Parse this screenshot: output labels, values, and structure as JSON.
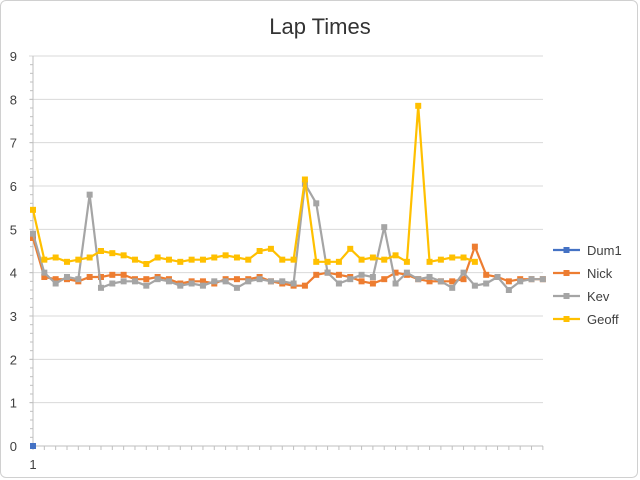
{
  "chart_data": {
    "type": "line",
    "title": "Lap Times",
    "xlabel": "",
    "ylabel": "",
    "ylim": [
      0,
      9
    ],
    "yticks": [
      "0",
      "1",
      "2",
      "3",
      "4",
      "5",
      "6",
      "7",
      "8",
      "9"
    ],
    "xtick_labels": [
      "1"
    ],
    "grid": true,
    "legend_position": "right",
    "series": [
      {
        "name": "Dum1",
        "color": "#4472c4",
        "values": [
          0
        ]
      },
      {
        "name": "Nick",
        "color": "#ed7d31",
        "values": [
          4.8,
          3.9,
          3.85,
          3.85,
          3.8,
          3.9,
          3.9,
          3.95,
          3.95,
          3.85,
          3.85,
          3.9,
          3.85,
          3.75,
          3.8,
          3.8,
          3.75,
          3.85,
          3.85,
          3.85,
          3.9,
          3.8,
          3.75,
          3.7,
          3.7,
          3.95,
          4.0,
          3.95,
          3.9,
          3.8,
          3.75,
          3.85,
          4.0,
          3.95,
          3.85,
          3.8,
          3.8,
          3.8,
          3.85,
          4.6,
          3.95,
          3.9,
          3.8,
          3.85,
          3.85,
          3.85
        ]
      },
      {
        "name": "Kev",
        "color": "#a5a5a5",
        "values": [
          4.9,
          4.0,
          3.75,
          3.9,
          3.85,
          5.8,
          3.65,
          3.75,
          3.8,
          3.8,
          3.7,
          3.85,
          3.8,
          3.7,
          3.75,
          3.7,
          3.8,
          3.8,
          3.65,
          3.8,
          3.85,
          3.8,
          3.8,
          3.75,
          6.05,
          5.6,
          4.0,
          3.75,
          3.85,
          3.95,
          3.9,
          5.05,
          3.75,
          4.0,
          3.85,
          3.9,
          3.8,
          3.65,
          4.0,
          3.7,
          3.75,
          3.9,
          3.6,
          3.8,
          3.85,
          3.85
        ]
      },
      {
        "name": "Geoff",
        "color": "#ffc000",
        "values": [
          5.45,
          4.3,
          4.35,
          4.25,
          4.3,
          4.35,
          4.5,
          4.45,
          4.4,
          4.3,
          4.2,
          4.35,
          4.3,
          4.25,
          4.3,
          4.3,
          4.35,
          4.4,
          4.35,
          4.3,
          4.5,
          4.55,
          4.3,
          4.3,
          6.15,
          4.25,
          4.25,
          4.25,
          4.55,
          4.3,
          4.35,
          4.3,
          4.4,
          4.25,
          7.85,
          4.25,
          4.3,
          4.35,
          4.35,
          4.25
        ]
      }
    ]
  }
}
